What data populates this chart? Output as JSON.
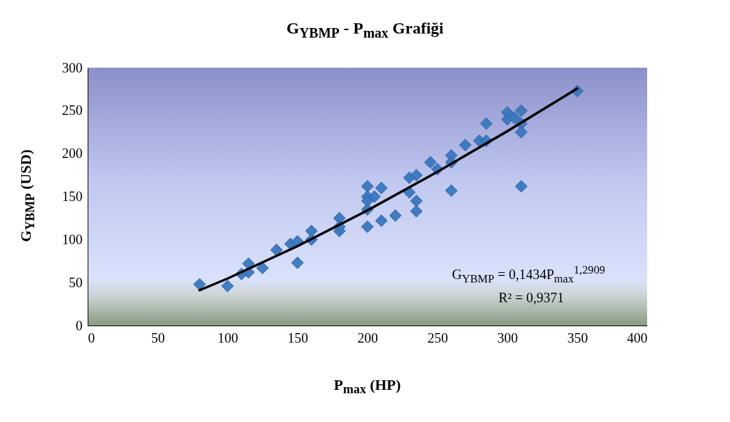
{
  "chart_data": {
    "type": "scatter",
    "title": "G$_{YBMP}$ - P$_{max}$ Grafiği",
    "xlabel": "P$_{max}$ (HP)",
    "ylabel": "G$_{YBMP}$ (USD)",
    "annotations": [
      "G$_{YBMP}$ = 0,1434P$_{max}$$^{1,2909}$",
      "R² = 0,9371"
    ],
    "xlim": [
      0,
      400
    ],
    "xticks": [
      0,
      50,
      100,
      150,
      200,
      250,
      300,
      350,
      400
    ],
    "ylim": [
      0,
      300
    ],
    "yticks": [
      0,
      50,
      100,
      150,
      200,
      250,
      300
    ],
    "grid": false,
    "marker": "diamond",
    "series": [
      {
        "color": "#3a78c0",
        "x": [
          80,
          100,
          110,
          115,
          115,
          125,
          135,
          145,
          150,
          150,
          160,
          160,
          180,
          180,
          180,
          200,
          200,
          200,
          200,
          200,
          205,
          210,
          210,
          220,
          230,
          230,
          235,
          235,
          235,
          245,
          250,
          260,
          260,
          260,
          270,
          280,
          285,
          285,
          300,
          300,
          305,
          310,
          310,
          310,
          310,
          350
        ],
        "values": [
          48,
          46,
          60,
          72,
          62,
          67,
          88,
          95,
          73,
          98,
          110,
          100,
          125,
          110,
          115,
          162,
          150,
          145,
          135,
          115,
          150,
          160,
          122,
          128,
          172,
          155,
          175,
          145,
          133,
          190,
          182,
          198,
          190,
          157,
          210,
          215,
          235,
          215,
          248,
          240,
          242,
          250,
          235,
          225,
          162,
          273
        ]
      },
      {
        "type": "line",
        "color": "#000000",
        "marker": "none",
        "x": [
          80,
          100,
          150,
          200,
          250,
          300,
          350
        ],
        "values": [
          41.1,
          54.7,
          92.4,
          134.0,
          178.8,
          226.1,
          275.8
        ]
      }
    ]
  }
}
